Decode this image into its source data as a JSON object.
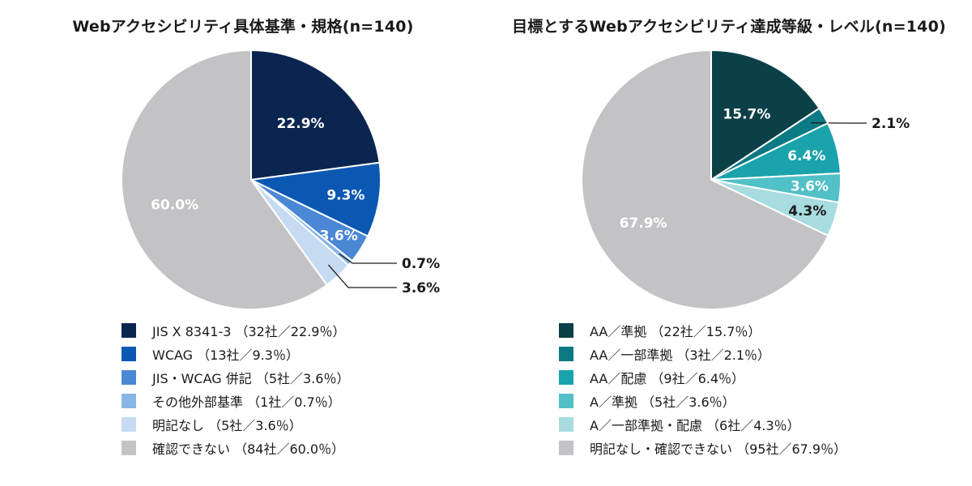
{
  "chart_data": [
    {
      "type": "pie",
      "title": "Webアクセシビリティ具体基準・規格(n=140)",
      "slices": [
        {
          "legend": "JIS X 8341-3 （32社／22.9％）",
          "value": 22.9,
          "label": "22.9%",
          "color": "#0b2551"
        },
        {
          "legend": "WCAG （13社／9.3％）",
          "value": 9.3,
          "label": "9.3%",
          "color": "#0b58b3"
        },
        {
          "legend": "JIS・WCAG 併記 （5社／3.6％）",
          "value": 3.6,
          "label": "3.6%",
          "color": "#4a88d6"
        },
        {
          "legend": "その他外部基準 （1社／0.7％）",
          "value": 0.7,
          "label": "0.7%",
          "color": "#86b5e6"
        },
        {
          "legend": "明記なし （5社／3.6％）",
          "value": 3.6,
          "label": "3.6%",
          "color": "#c6dbf2"
        },
        {
          "legend": "確認できない （84社／60.0％）",
          "value": 60.0,
          "label": "60.0%",
          "color": "#c3c3c6"
        }
      ]
    },
    {
      "type": "pie",
      "title": "目標とするWebアクセシビリティ達成等級・レベル(n=140)",
      "slices": [
        {
          "legend": "AA／準拠 （22社／15.7％）",
          "value": 15.7,
          "label": "15.7%",
          "color": "#0c4048"
        },
        {
          "legend": "AA／一部準拠 （3社／2.1％）",
          "value": 2.1,
          "label": "2.1%",
          "color": "#0c7a84"
        },
        {
          "legend": "AA／配慮 （9社／6.4％）",
          "value": 6.4,
          "label": "6.4%",
          "color": "#1aa3ad"
        },
        {
          "legend": "A／準拠 （5社／3.6％）",
          "value": 3.6,
          "label": "3.6%",
          "color": "#52c0c7"
        },
        {
          "legend": "A／一部準拠・配慮 （6社／4.3％）",
          "value": 4.3,
          "label": "4.3%",
          "color": "#a8dce0"
        },
        {
          "legend": "明記なし・確認できない （95社／67.9％）",
          "value": 67.9,
          "label": "67.9%",
          "color": "#c3c3c6"
        }
      ]
    }
  ]
}
